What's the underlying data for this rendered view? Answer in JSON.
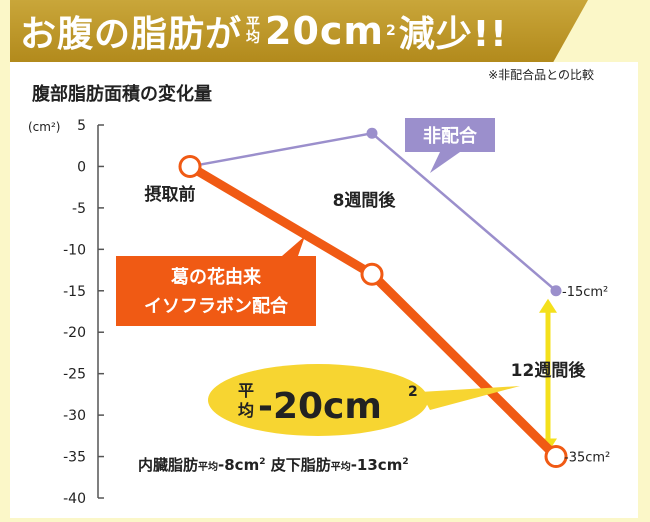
{
  "banner": {
    "part1": "お腹の脂肪が",
    "avg_top": "平",
    "avg_bottom": "均",
    "value": "20cm",
    "sup": "2",
    "part2": "減少!!"
  },
  "note": "※非配合品との比較",
  "chart_data": {
    "type": "line",
    "title": "腹部脂肪面積の変化量",
    "ylabel": "(cm²)",
    "ylim": [
      -40,
      5
    ],
    "yticks": [
      "5",
      "0",
      "-5",
      "-10",
      "-15",
      "-20",
      "-25",
      "-30",
      "-35",
      "-40"
    ],
    "x": [
      0,
      8,
      12
    ],
    "x_labels": [
      "摂取前",
      "8週間後",
      "12週間後"
    ],
    "series": [
      {
        "name": "非配合",
        "values": [
          0,
          4,
          -15
        ],
        "color": "#9b8fcc",
        "end_label": "-15cm²"
      },
      {
        "name": "葛の花由来イソフラボン配合",
        "values": [
          0,
          -13,
          -35
        ],
        "color": "#f05a14",
        "end_label": "-35cm²"
      }
    ],
    "annotations": {
      "orange_label_line1": "葛の花由来",
      "orange_label_line2": "イソフラボン配合",
      "avg_top": "平",
      "avg_bottom": "均",
      "avg_value": "-20cm",
      "avg_sup": "2",
      "bottom_visceral": "内臓脂肪",
      "bottom_avg": "平均",
      "bottom_visceral_val": "-8cm",
      "bottom_subcut": "皮下脂肪",
      "bottom_subcut_val": "-13cm",
      "sup": "2"
    }
  }
}
